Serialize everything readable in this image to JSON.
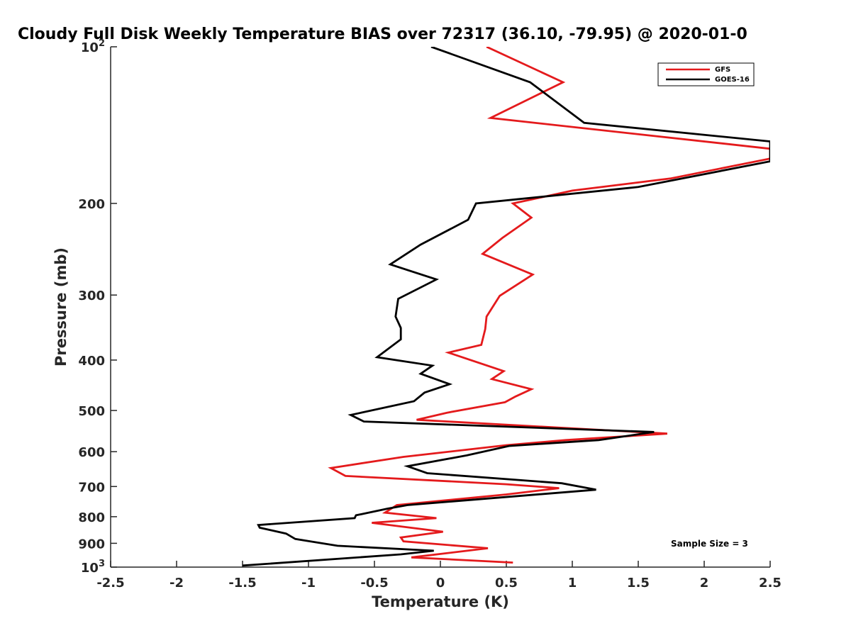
{
  "chart_data": {
    "type": "line",
    "title": "Cloudy Full Disk Weekly Temperature BIAS over 72317 (36.10, -79.95) @ 2020-01-0",
    "xlabel": "Temperature (K)",
    "ylabel": "Pressure (mb)",
    "xlim": [
      -2.5,
      2.5
    ],
    "ylim": [
      100,
      1000
    ],
    "y_scale": "log",
    "y_reversed": true,
    "x_ticks": [
      "-2.5",
      "-2",
      "-1.5",
      "-1",
      "-0.5",
      "0",
      "0.5",
      "1",
      "1.5",
      "2",
      "2.5"
    ],
    "y_ticks": [
      {
        "value": 100,
        "base": "10",
        "exp": "2"
      },
      {
        "value": 200,
        "label": "200"
      },
      {
        "value": 300,
        "label": "300"
      },
      {
        "value": 400,
        "label": "400"
      },
      {
        "value": 500,
        "label": "500"
      },
      {
        "value": 600,
        "label": "600"
      },
      {
        "value": 700,
        "label": "700"
      },
      {
        "value": 800,
        "label": "800"
      },
      {
        "value": 900,
        "label": "900"
      },
      {
        "value": 1000,
        "base": "10",
        "exp": "3"
      }
    ],
    "legend_position": "top-right",
    "annotation": "Sample Size = 3",
    "series": [
      {
        "name": "GFS",
        "color": "#e41a1c",
        "points": [
          [
            0.35,
            100
          ],
          [
            0.93,
            117
          ],
          [
            0.38,
            137
          ],
          [
            2.5,
            157
          ],
          [
            2.5,
            164
          ],
          [
            1.75,
            179
          ],
          [
            1.0,
            189
          ],
          [
            0.55,
            200
          ],
          [
            0.69,
            213
          ],
          [
            0.47,
            233
          ],
          [
            0.32,
            250
          ],
          [
            0.7,
            274
          ],
          [
            0.45,
            301
          ],
          [
            0.35,
            330
          ],
          [
            0.34,
            349
          ],
          [
            0.31,
            374
          ],
          [
            0.06,
            387
          ],
          [
            0.48,
            420
          ],
          [
            0.39,
            435
          ],
          [
            0.69,
            455
          ],
          [
            0.57,
            470
          ],
          [
            0.49,
            482
          ],
          [
            0.05,
            505
          ],
          [
            -0.18,
            521
          ],
          [
            1.72,
            554
          ],
          [
            0.95,
            570
          ],
          [
            0.5,
            583
          ],
          [
            -0.28,
            614
          ],
          [
            -0.83,
            645
          ],
          [
            -0.72,
            668
          ],
          [
            0.5,
            693
          ],
          [
            0.9,
            705
          ],
          [
            0.5,
            725
          ],
          [
            -0.33,
            760
          ],
          [
            -0.42,
            786
          ],
          [
            -0.03,
            805
          ],
          [
            -0.52,
            822
          ],
          [
            0.02,
            855
          ],
          [
            -0.3,
            877
          ],
          [
            -0.28,
            892
          ],
          [
            0.36,
            920
          ],
          [
            -0.22,
            958
          ],
          [
            0.55,
            980
          ]
        ]
      },
      {
        "name": "GOES-16",
        "color": "#000000",
        "points": [
          [
            -0.07,
            100
          ],
          [
            0.68,
            117
          ],
          [
            1.09,
            140
          ],
          [
            2.5,
            152
          ],
          [
            2.5,
            163
          ],
          [
            2.5,
            166
          ],
          [
            1.5,
            186
          ],
          [
            0.27,
            200
          ],
          [
            0.21,
            215
          ],
          [
            -0.15,
            240
          ],
          [
            -0.38,
            262
          ],
          [
            -0.03,
            280
          ],
          [
            -0.32,
            305
          ],
          [
            -0.34,
            330
          ],
          [
            -0.3,
            347
          ],
          [
            -0.3,
            365
          ],
          [
            -0.48,
            395
          ],
          [
            -0.06,
            410
          ],
          [
            -0.15,
            425
          ],
          [
            0.07,
            445
          ],
          [
            -0.12,
            462
          ],
          [
            -0.2,
            480
          ],
          [
            -0.68,
            510
          ],
          [
            -0.58,
            525
          ],
          [
            1.62,
            550
          ],
          [
            1.2,
            570
          ],
          [
            0.52,
            585
          ],
          [
            0.2,
            610
          ],
          [
            -0.25,
            640
          ],
          [
            -0.1,
            660
          ],
          [
            0.92,
            690
          ],
          [
            1.18,
            710
          ],
          [
            0.65,
            728
          ],
          [
            -0.25,
            760
          ],
          [
            -0.4,
            772
          ],
          [
            -0.64,
            795
          ],
          [
            -0.65,
            805
          ],
          [
            -1.38,
            830
          ],
          [
            -1.37,
            840
          ],
          [
            -1.17,
            862
          ],
          [
            -1.1,
            883
          ],
          [
            -0.78,
            910
          ],
          [
            -0.05,
            930
          ],
          [
            -0.3,
            945
          ],
          [
            -1.5,
            993
          ]
        ]
      }
    ]
  }
}
